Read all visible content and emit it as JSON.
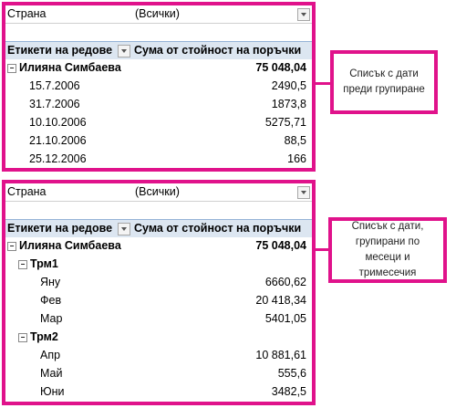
{
  "top": {
    "filter": {
      "label": "Страна",
      "value": "(Всички)"
    },
    "row_header": "Етикети на редове",
    "value_header": "Сума от стойност на поръчки",
    "group": {
      "name": "Илияна Симбаева",
      "total": "75 048,04"
    },
    "rows": [
      {
        "label": "15.7.2006",
        "value": "2490,5"
      },
      {
        "label": "31.7.2006",
        "value": "1873,8"
      },
      {
        "label": "10.10.2006",
        "value": "5275,71"
      },
      {
        "label": "21.10.2006",
        "value": "88,5"
      },
      {
        "label": "25.12.2006",
        "value": "166"
      }
    ]
  },
  "bottom": {
    "filter": {
      "label": "Страна",
      "value": "(Всички)"
    },
    "row_header": "Етикети на редове",
    "value_header": "Сума от стойност на поръчки",
    "group": {
      "name": "Илияна Симбаева",
      "total": "75 048,04"
    },
    "quarters": [
      {
        "name": "Трм1",
        "rows": [
          {
            "label": "Яну",
            "value": "6660,62"
          },
          {
            "label": "Фев",
            "value": "20 418,34"
          },
          {
            "label": "Мар",
            "value": "5401,05"
          }
        ]
      },
      {
        "name": "Трм2",
        "rows": [
          {
            "label": "Апр",
            "value": "10 881,61"
          },
          {
            "label": "Май",
            "value": "555,6"
          },
          {
            "label": "Юни",
            "value": "3482,5"
          }
        ]
      }
    ]
  },
  "callouts": [
    "Списък с дати преди групиране",
    "Списък с дати, групирани по месеци и тримесечия"
  ]
}
